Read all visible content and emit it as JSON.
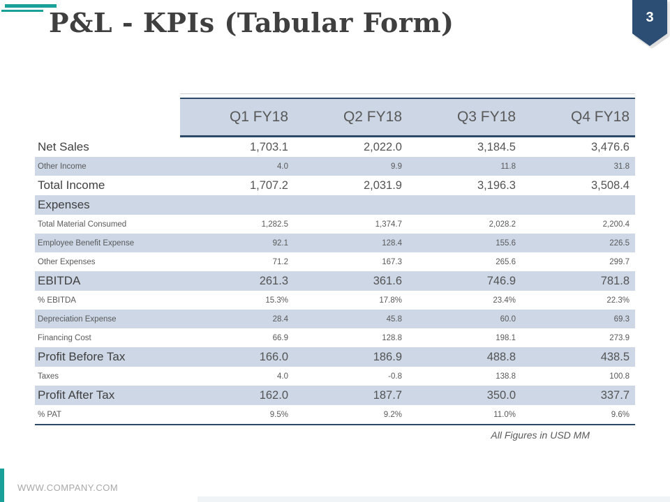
{
  "slide": {
    "title": "P&L - KPIs (Tabular Form)",
    "page_number": "3",
    "footnote": "All Figures in USD MM",
    "footer_url": "WWW.COMPANY.COM"
  },
  "colors": {
    "accent_teal": "#18a099",
    "banner_blue": "#2d4e74",
    "header_fill_blue": "#ccd6e4",
    "row_stripe_blue": "#cdd7e6",
    "table_border_navy": "#2c4a68",
    "title_gray": "#3f3f3f",
    "text_gray": "#595959",
    "footer_gray": "#a8a8a8"
  },
  "table": {
    "columns": [
      "Q1 FY18",
      "Q2 FY18",
      "Q3 FY18",
      "Q4 FY18"
    ],
    "rows": [
      {
        "label": "Net Sales",
        "emphasis": "large",
        "shaded": false,
        "values": [
          "1,703.1",
          "2,022.0",
          "3,184.5",
          "3,476.6"
        ]
      },
      {
        "label": "Other Income",
        "emphasis": "small",
        "shaded": true,
        "values": [
          "4.0",
          "9.9",
          "11.8",
          "31.8"
        ]
      },
      {
        "label": "Total Income",
        "emphasis": "large",
        "shaded": false,
        "values": [
          "1,707.2",
          "2,031.9",
          "3,196.3",
          "3,508.4"
        ]
      },
      {
        "label": "Expenses",
        "emphasis": "large",
        "shaded": true,
        "values": [
          "",
          "",
          "",
          ""
        ]
      },
      {
        "label": "Total Material Consumed",
        "emphasis": "small",
        "shaded": false,
        "values": [
          "1,282.5",
          "1,374.7",
          "2,028.2",
          "2,200.4"
        ]
      },
      {
        "label": "Employee Benefit Expense",
        "emphasis": "small",
        "shaded": true,
        "values": [
          "92.1",
          "128.4",
          "155.6",
          "226.5"
        ]
      },
      {
        "label": "Other Expenses",
        "emphasis": "small",
        "shaded": false,
        "values": [
          "71.2",
          "167.3",
          "265.6",
          "299.7"
        ]
      },
      {
        "label": "EBITDA",
        "emphasis": "large",
        "shaded": true,
        "values": [
          "261.3",
          "361.6",
          "746.9",
          "781.8"
        ]
      },
      {
        "label": "% EBITDA",
        "emphasis": "small",
        "shaded": false,
        "values": [
          "15.3%",
          "17.8%",
          "23.4%",
          "22.3%"
        ]
      },
      {
        "label": "Depreciation Expense",
        "emphasis": "small",
        "shaded": true,
        "values": [
          "28.4",
          "45.8",
          "60.0",
          "69.3"
        ]
      },
      {
        "label": "Financing Cost",
        "emphasis": "small",
        "shaded": false,
        "values": [
          "66.9",
          "128.8",
          "198.1",
          "273.9"
        ]
      },
      {
        "label": "Profit Before Tax",
        "emphasis": "large",
        "shaded": true,
        "values": [
          "166.0",
          "186.9",
          "488.8",
          "438.5"
        ]
      },
      {
        "label": "Taxes",
        "emphasis": "small",
        "shaded": false,
        "values": [
          "4.0",
          "-0.8",
          "138.8",
          "100.8"
        ]
      },
      {
        "label": "Profit After Tax",
        "emphasis": "large",
        "shaded": true,
        "values": [
          "162.0",
          "187.7",
          "350.0",
          "337.7"
        ]
      },
      {
        "label": "% PAT",
        "emphasis": "small",
        "shaded": false,
        "values": [
          "9.5%",
          "9.2%",
          "11.0%",
          "9.6%"
        ]
      }
    ]
  }
}
